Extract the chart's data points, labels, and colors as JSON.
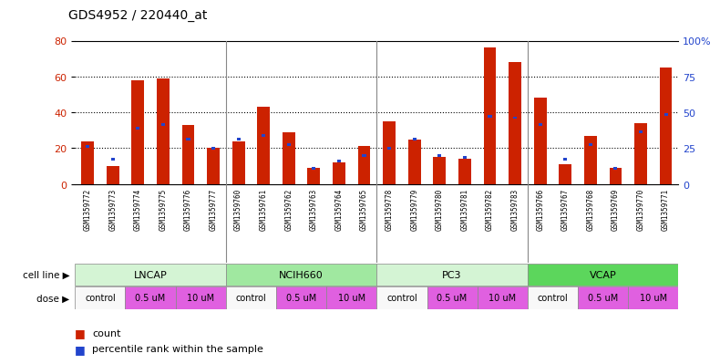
{
  "title": "GDS4952 / 220440_at",
  "samples": [
    "GSM1359772",
    "GSM1359773",
    "GSM1359774",
    "GSM1359775",
    "GSM1359776",
    "GSM1359777",
    "GSM1359760",
    "GSM1359761",
    "GSM1359762",
    "GSM1359763",
    "GSM1359764",
    "GSM1359765",
    "GSM1359778",
    "GSM1359779",
    "GSM1359780",
    "GSM1359781",
    "GSM1359782",
    "GSM1359783",
    "GSM1359766",
    "GSM1359767",
    "GSM1359768",
    "GSM1359769",
    "GSM1359770",
    "GSM1359771"
  ],
  "red_values": [
    24,
    10,
    58,
    59,
    33,
    20,
    24,
    43,
    29,
    9,
    12,
    21,
    35,
    25,
    15,
    14,
    76,
    68,
    48,
    11,
    27,
    9,
    34,
    65
  ],
  "blue_values": [
    21,
    14,
    31,
    33,
    25,
    20,
    25,
    27,
    22,
    9,
    13,
    16,
    20,
    25,
    16,
    15,
    38,
    37,
    33,
    14,
    22,
    9,
    29,
    39
  ],
  "cell_lines": [
    {
      "label": "LNCAP",
      "start": 0,
      "end": 6,
      "color": "#d4f4d4"
    },
    {
      "label": "NCIH660",
      "start": 6,
      "end": 12,
      "color": "#a0e8a0"
    },
    {
      "label": "PC3",
      "start": 12,
      "end": 18,
      "color": "#d4f4d4"
    },
    {
      "label": "VCAP",
      "start": 18,
      "end": 24,
      "color": "#5cd65c"
    }
  ],
  "dose_groups": [
    {
      "label": "control",
      "start": 0,
      "end": 2,
      "color": "#f8f8f8"
    },
    {
      "label": "0.5 uM",
      "start": 2,
      "end": 4,
      "color": "#e060e0"
    },
    {
      "label": "10 uM",
      "start": 4,
      "end": 6,
      "color": "#e060e0"
    },
    {
      "label": "control",
      "start": 6,
      "end": 8,
      "color": "#f8f8f8"
    },
    {
      "label": "0.5 uM",
      "start": 8,
      "end": 10,
      "color": "#e060e0"
    },
    {
      "label": "10 uM",
      "start": 10,
      "end": 12,
      "color": "#e060e0"
    },
    {
      "label": "control",
      "start": 12,
      "end": 14,
      "color": "#f8f8f8"
    },
    {
      "label": "0.5 uM",
      "start": 14,
      "end": 16,
      "color": "#e060e0"
    },
    {
      "label": "10 uM",
      "start": 16,
      "end": 18,
      "color": "#e060e0"
    },
    {
      "label": "control",
      "start": 18,
      "end": 20,
      "color": "#f8f8f8"
    },
    {
      "label": "0.5 uM",
      "start": 20,
      "end": 22,
      "color": "#e060e0"
    },
    {
      "label": "10 uM",
      "start": 22,
      "end": 24,
      "color": "#e060e0"
    }
  ],
  "red_color": "#cc2200",
  "blue_color": "#2244cc",
  "xtick_bg": "#d0d0d0",
  "ylim_left": [
    0,
    80
  ],
  "ylim_right": [
    0,
    100
  ],
  "yticks_left": [
    0,
    20,
    40,
    60,
    80
  ],
  "yticks_right": [
    0,
    25,
    50,
    75,
    100
  ],
  "ytick_labels_right": [
    "0",
    "25",
    "50",
    "75",
    "100%"
  ],
  "grid_vals": [
    20,
    40,
    60
  ],
  "group_seps": [
    5.5,
    11.5,
    17.5
  ]
}
